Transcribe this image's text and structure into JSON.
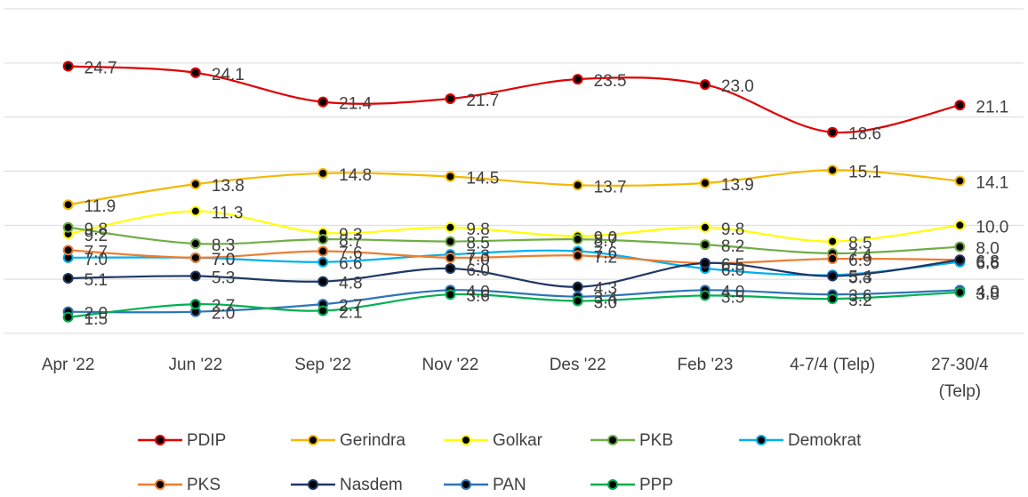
{
  "chart_data": {
    "type": "line",
    "categories": [
      "Apr '22",
      "Jun '22",
      "Sep '22",
      "Nov '22",
      "Des '22",
      "Feb '23",
      "4-7/4 (Telp)",
      "27-30/4 (Telp)"
    ],
    "ylim": [
      0,
      30
    ],
    "yticks": [
      0,
      5,
      10,
      15,
      20,
      25,
      30
    ],
    "grid": true,
    "legend": "bottom",
    "series": [
      {
        "name": "PDIP",
        "color": "#e00000",
        "values": [
          24.7,
          24.1,
          21.4,
          21.7,
          23.5,
          23.0,
          18.6,
          21.1
        ],
        "value_labels": [
          "24.7",
          "24.1",
          "21.4",
          "21.7",
          "23.5",
          "23.0",
          "18.6",
          "21.1"
        ]
      },
      {
        "name": "Gerindra",
        "color": "#f5b800",
        "values": [
          11.9,
          13.8,
          14.8,
          14.5,
          13.7,
          13.9,
          15.1,
          14.1
        ],
        "value_labels": [
          "11.9",
          "13.8",
          "14.8",
          "14.5",
          "13.7",
          "13.9",
          "15.1",
          "14.1"
        ]
      },
      {
        "name": "Golkar",
        "color": "#ffff00",
        "values": [
          9.2,
          11.3,
          9.3,
          9.8,
          9.0,
          9.8,
          8.5,
          10.0
        ],
        "value_labels": [
          "9.2",
          "11.3",
          "9.3",
          "9.8",
          "9.0",
          "9.8",
          "8.5",
          "10.0"
        ]
      },
      {
        "name": "PKB",
        "color": "#70ad47",
        "values": [
          9.8,
          8.3,
          8.7,
          8.5,
          8.7,
          8.2,
          7.4,
          8.0
        ],
        "value_labels": [
          "9.8",
          "8.3",
          "8.7",
          "8.5",
          "8.7",
          "8.2",
          "7.4",
          "8.0"
        ]
      },
      {
        "name": "Demokrat",
        "color": "#00b0f0",
        "values": [
          7.0,
          7.0,
          6.6,
          7.3,
          7.6,
          6.0,
          5.4,
          6.6
        ],
        "value_labels": [
          "7.0",
          "7.0",
          "6.6",
          "7.3",
          "7.6",
          "6.0",
          "5.4",
          "6.6"
        ]
      },
      {
        "name": "PKS",
        "color": "#ed7d31",
        "values": [
          7.7,
          7.0,
          7.6,
          7.0,
          7.2,
          6.5,
          6.9,
          6.8
        ],
        "value_labels": [
          "7.7",
          "7.0",
          "7.6",
          "7.0",
          "7.2",
          "6.5",
          "6.9",
          "6.8"
        ]
      },
      {
        "name": "Nasdem",
        "color": "#1f3864",
        "values": [
          5.1,
          5.3,
          4.8,
          6.0,
          4.3,
          6.5,
          5.3,
          6.8
        ],
        "value_labels": [
          "5.1",
          "5.3",
          "4.8",
          "6.0",
          "4.3",
          "6.5",
          "5.3",
          "6.8"
        ]
      },
      {
        "name": "PAN",
        "color": "#2e75b6",
        "values": [
          2.0,
          2.0,
          2.7,
          4.0,
          3.4,
          4.0,
          3.6,
          4.0
        ],
        "value_labels": [
          "2.0",
          "2.0",
          "2.7",
          "4.0",
          "3.4",
          "4.0",
          "3.6",
          "4.0"
        ]
      },
      {
        "name": "PPP",
        "color": "#00b050",
        "values": [
          1.5,
          2.7,
          2.1,
          3.6,
          3.0,
          3.5,
          3.2,
          3.8
        ],
        "value_labels": [
          "1.5",
          "2.7",
          "2.1",
          "3.6",
          "3.0",
          "3.5",
          "3.2",
          "3.8"
        ]
      }
    ]
  }
}
